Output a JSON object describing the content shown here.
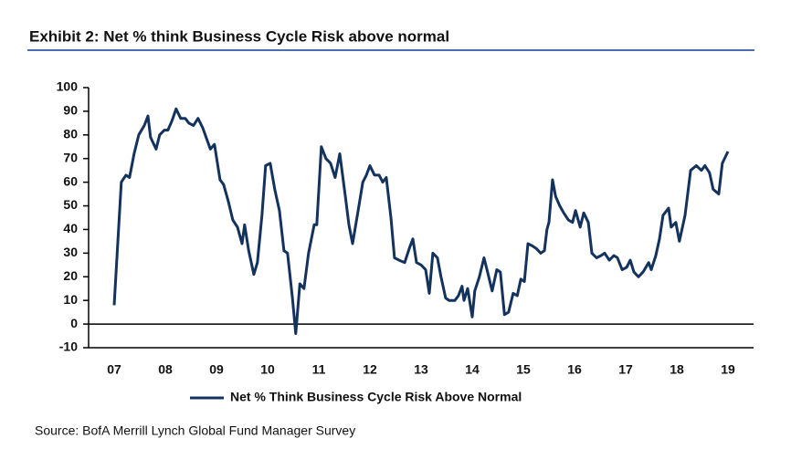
{
  "chart_data": {
    "type": "line",
    "title": "Exhibit 2: Net % think Business Cycle Risk above normal",
    "source": "Source: BofA Merrill Lynch Global Fund Manager Survey",
    "x": [
      2007.5,
      2007.64,
      2007.73,
      2007.8,
      2007.89,
      2007.98,
      2008.09,
      2008.16,
      2008.21,
      2008.32,
      2008.39,
      2008.48,
      2008.55,
      2008.63,
      2008.71,
      2008.8,
      2008.89,
      2008.96,
      2009.05,
      2009.14,
      2009.23,
      2009.38,
      2009.46,
      2009.57,
      2009.64,
      2009.73,
      2009.82,
      2009.91,
      2010.0,
      2010.05,
      2010.13,
      2010.23,
      2010.3,
      2010.39,
      2010.46,
      2010.55,
      2010.64,
      2010.73,
      2010.82,
      2010.89,
      2010.98,
      2011.05,
      2011.13,
      2011.21,
      2011.3,
      2011.41,
      2011.46,
      2011.55,
      2011.64,
      2011.73,
      2011.82,
      2011.91,
      2012.02,
      2012.09,
      2012.16,
      2012.27,
      2012.36,
      2012.43,
      2012.5,
      2012.59,
      2012.68,
      2012.75,
      2012.82,
      2012.91,
      2012.98,
      2013.07,
      2013.18,
      2013.27,
      2013.34,
      2013.41,
      2013.5,
      2013.59,
      2013.66,
      2013.73,
      2013.82,
      2013.89,
      2013.98,
      2014.05,
      2014.16,
      2014.23,
      2014.3,
      2014.34,
      2014.41,
      2014.5,
      2014.55,
      2014.64,
      2014.73,
      2014.8,
      2014.89,
      2014.98,
      2015.05,
      2015.13,
      2015.21,
      2015.3,
      2015.38,
      2015.45,
      2015.52,
      2015.59,
      2015.68,
      2015.75,
      2015.84,
      2015.91,
      2015.96,
      2016.0,
      2016.07,
      2016.13,
      2016.21,
      2016.29,
      2016.38,
      2016.46,
      2016.52,
      2016.61,
      2016.68,
      2016.77,
      2016.84,
      2016.93,
      2017.02,
      2017.09,
      2017.18,
      2017.27,
      2017.34,
      2017.43,
      2017.52,
      2017.59,
      2017.66,
      2017.75,
      2017.84,
      2017.95,
      2018.0,
      2018.09,
      2018.16,
      2018.23,
      2018.34,
      2018.39,
      2018.48,
      2018.55,
      2018.66,
      2018.77,
      2018.88,
      2018.98,
      2019.05,
      2019.14,
      2019.21,
      2019.32,
      2019.39,
      2019.5
    ],
    "series": [
      {
        "name": "Net % Think Business Cycle Risk Above Normal",
        "color": "#13335e",
        "values": [
          8,
          60,
          63,
          62,
          72,
          80,
          84,
          88,
          79,
          74,
          80,
          82,
          82,
          86,
          91,
          87,
          87,
          85,
          84,
          87,
          83,
          74,
          76,
          61,
          59,
          52,
          44,
          41,
          34,
          42,
          31,
          21,
          26,
          46,
          67,
          68,
          57,
          48,
          31,
          30,
          12,
          -4,
          17,
          15,
          30,
          42,
          42,
          75,
          70,
          68,
          62,
          72,
          54,
          42,
          34,
          48,
          60,
          63,
          67,
          63,
          63,
          60,
          62,
          45,
          28,
          27,
          26,
          32,
          36,
          26,
          25,
          23,
          13,
          30,
          28,
          20,
          11,
          10,
          10,
          12,
          16,
          10,
          15,
          3,
          14,
          20,
          28,
          22,
          14,
          23,
          22,
          4,
          5,
          13,
          12,
          19,
          18,
          34,
          33,
          32,
          30,
          31,
          40,
          43,
          61,
          54,
          50,
          47,
          44,
          43,
          48,
          41,
          47,
          43,
          30,
          28,
          29,
          30,
          27,
          29,
          28,
          23,
          24,
          27,
          22,
          20,
          22,
          26,
          23,
          29,
          36,
          46,
          49,
          41,
          43,
          35,
          46,
          65,
          67,
          65,
          67,
          64,
          57,
          55,
          68,
          73
        ]
      }
    ],
    "xlim": [
      2007,
      2020
    ],
    "xticks": [
      {
        "value": 2007.5,
        "label": "07"
      },
      {
        "value": 2008.5,
        "label": "08"
      },
      {
        "value": 2009.5,
        "label": "09"
      },
      {
        "value": 2010.5,
        "label": "10"
      },
      {
        "value": 2011.5,
        "label": "11"
      },
      {
        "value": 2012.5,
        "label": "12"
      },
      {
        "value": 2013.5,
        "label": "13"
      },
      {
        "value": 2014.5,
        "label": "14"
      },
      {
        "value": 2015.5,
        "label": "15"
      },
      {
        "value": 2016.5,
        "label": "16"
      },
      {
        "value": 2017.5,
        "label": "17"
      },
      {
        "value": 2018.5,
        "label": "18"
      },
      {
        "value": 2019.5,
        "label": "19"
      }
    ],
    "ylim": [
      -10,
      100
    ],
    "yticks": [
      -10,
      0,
      10,
      20,
      30,
      40,
      50,
      60,
      70,
      80,
      90,
      100
    ]
  }
}
